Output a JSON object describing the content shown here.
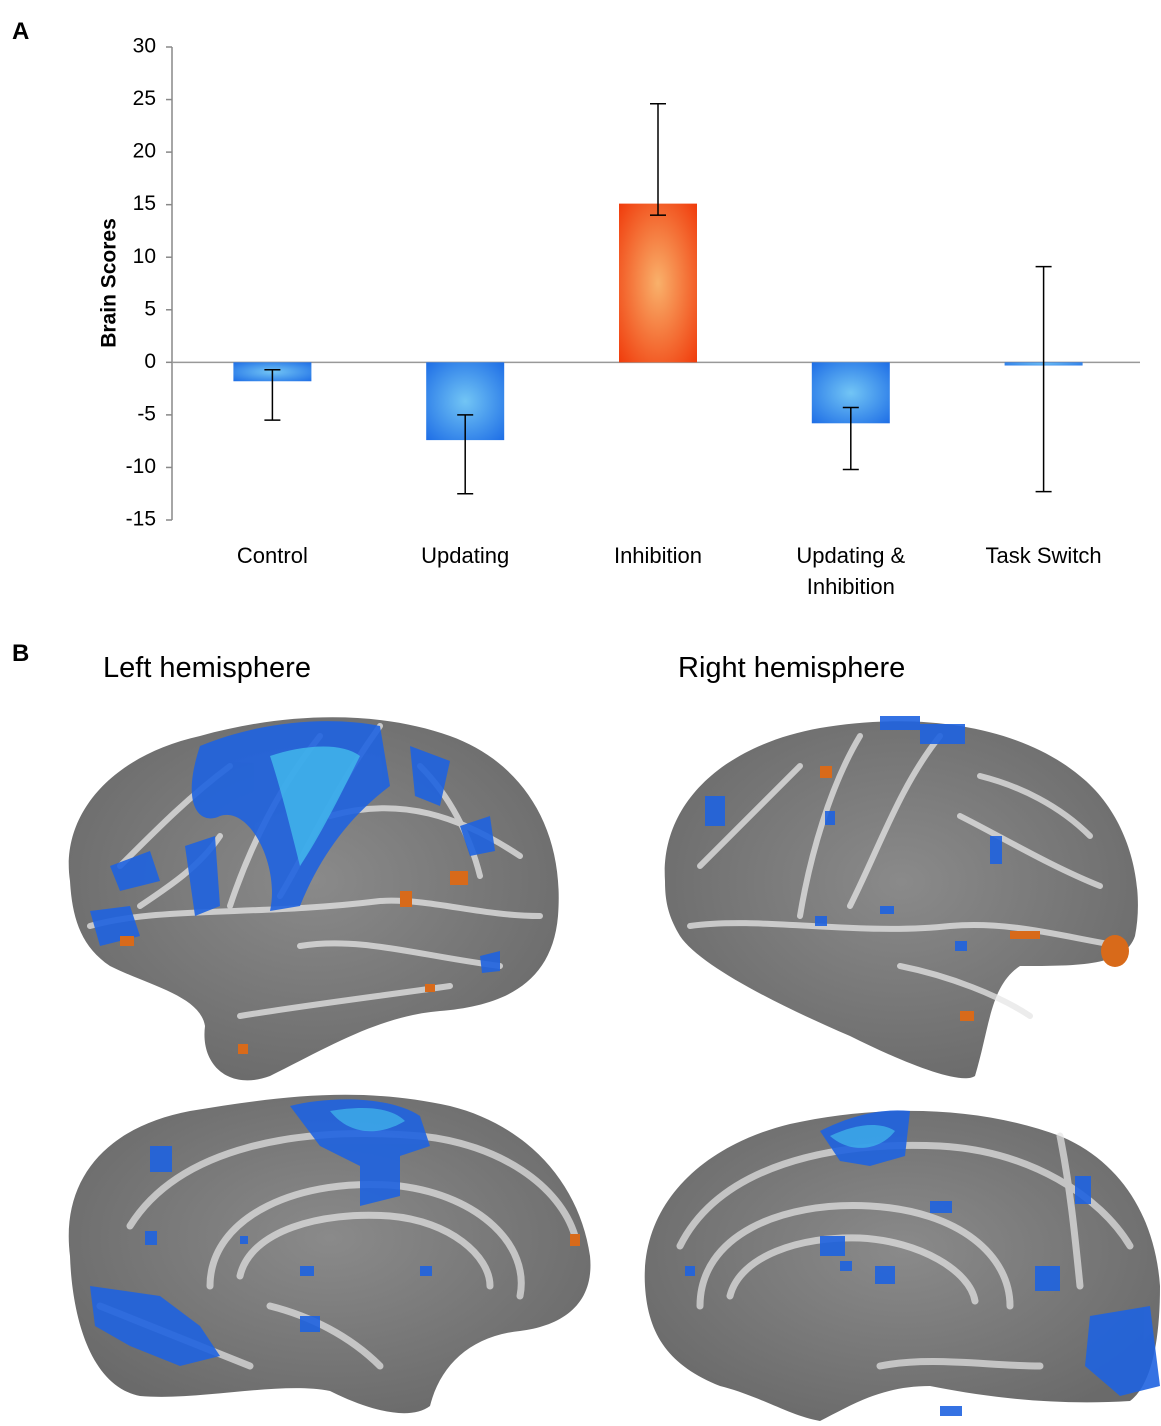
{
  "panels": [
    {
      "label": "A"
    },
    {
      "label": "B",
      "titles": [
        "Left hemisphere",
        "Right hemisphere"
      ]
    }
  ],
  "chart_data": {
    "type": "bar",
    "ylabel": "Brain Scores",
    "categories": [
      "Control",
      "Updating",
      "Inhibition",
      "Updating & Inhibition",
      "Task Switch"
    ],
    "values": [
      -1.8,
      -7.4,
      15.1,
      -5.8,
      -0.3
    ],
    "ci_low": [
      -5.5,
      -12.5,
      14.0,
      -10.2,
      -12.3
    ],
    "ci_high": [
      -0.7,
      -5.0,
      24.6,
      -4.3,
      9.1
    ],
    "colors": [
      "#1e6ee6",
      "#1e6ee6",
      "#f03c0c",
      "#1e6ee6",
      "#1e6ee6"
    ],
    "ylim": [
      -15,
      30
    ],
    "yticks": [
      -15,
      -10,
      -5,
      0,
      5,
      10,
      15,
      20,
      25,
      30
    ],
    "grid": false
  }
}
